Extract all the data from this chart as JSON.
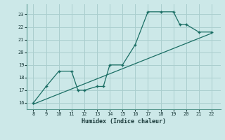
{
  "xlabel": "Humidex (Indice chaleur)",
  "bg_color": "#cce8e8",
  "grid_color": "#aacece",
  "line_color": "#1a6e64",
  "data_x": [
    8,
    9,
    10,
    11,
    11.5,
    12,
    13,
    13.5,
    14,
    15,
    16,
    17,
    18,
    19,
    19.5,
    20,
    21,
    22
  ],
  "data_y": [
    16.0,
    17.3,
    18.5,
    18.5,
    17.0,
    17.0,
    17.3,
    17.3,
    19.0,
    19.0,
    20.6,
    23.2,
    23.2,
    23.2,
    22.2,
    22.2,
    21.6,
    21.6
  ],
  "trend_x": [
    8,
    22
  ],
  "trend_y": [
    15.9,
    21.5
  ],
  "xlim": [
    7.5,
    22.7
  ],
  "ylim": [
    15.5,
    23.8
  ],
  "xticks": [
    8,
    9,
    10,
    11,
    12,
    13,
    14,
    15,
    16,
    17,
    18,
    19,
    20,
    21,
    22
  ],
  "yticks": [
    16,
    17,
    18,
    19,
    20,
    21,
    22,
    23
  ]
}
